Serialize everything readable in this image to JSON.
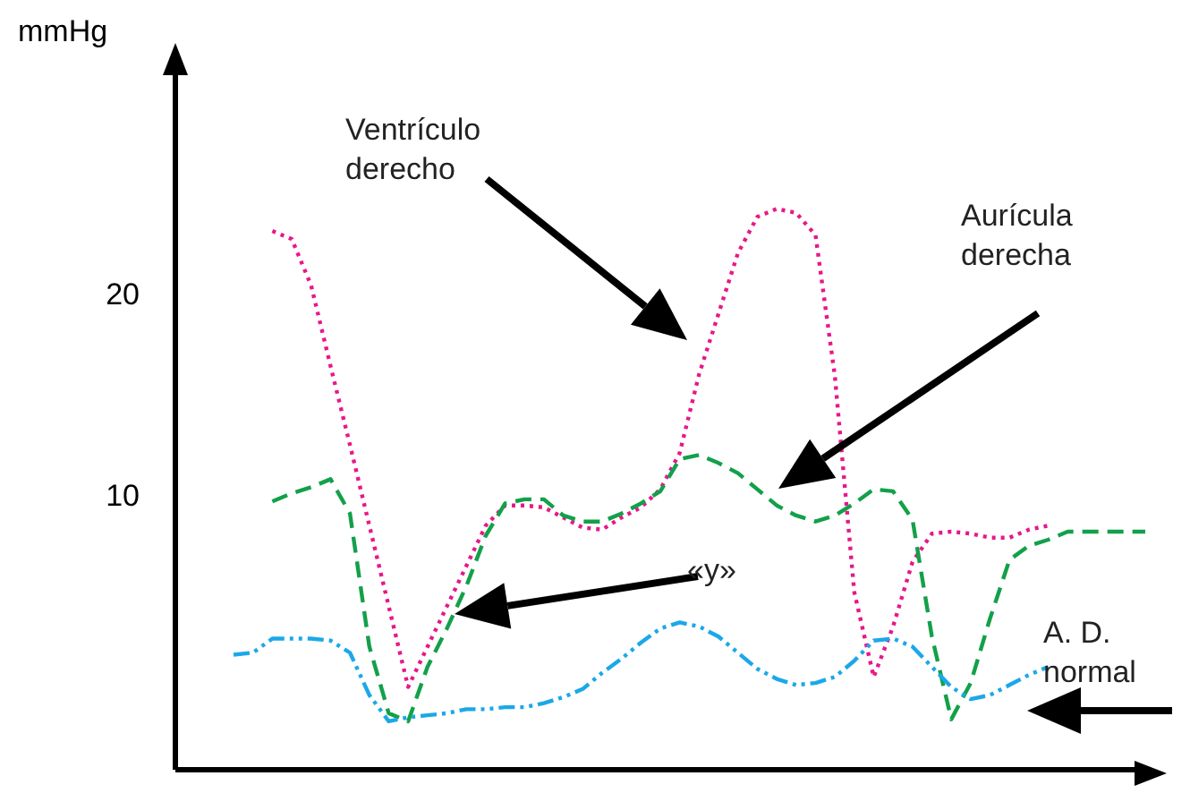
{
  "chart_data": {
    "type": "line",
    "ylabel": "mmHg",
    "categories": [
      null,
      null,
      null,
      null,
      null,
      null,
      null,
      null,
      null,
      null,
      null,
      null,
      null,
      null,
      null,
      null,
      null,
      null,
      null,
      null,
      null,
      null,
      null,
      null,
      null,
      null,
      null,
      null,
      null,
      null,
      null,
      null,
      null,
      null,
      null,
      null,
      null,
      null,
      null,
      null,
      null,
      null,
      null,
      null,
      null,
      null,
      null,
      null,
      null,
      null,
      null
    ],
    "ylim": [
      -3.6,
      31
    ],
    "yticks": [
      10,
      20
    ],
    "tick_labels": "y",
    "grid": false,
    "legend": false,
    "marker": "none",
    "annotations": [
      "Ventrículo derecho",
      "Aurícula derecha",
      "«y»",
      "A. D. normal"
    ],
    "series": [
      {
        "color": "#e8178a",
        "line_style": "dotted",
        "values": [
          null,
          null,
          null,
          null,
          null,
          23.1,
          22.7,
          20.4,
          16.4,
          12.5,
          8.5,
          4.5,
          0.5,
          2.5,
          4.5,
          6.5,
          8.5,
          9.5,
          9.5,
          9.4,
          8.9,
          8.4,
          8.3,
          8.9,
          9.4,
          10.3,
          12.1,
          16.0,
          19.0,
          22.0,
          23.8,
          24.2,
          24.0,
          22.9,
          15.9,
          5.2,
          1.0,
          3.5,
          6.7,
          8.1,
          8.2,
          8.1,
          7.9,
          7.9,
          8.3,
          8.5,
          null,
          null,
          null,
          null,
          null
        ]
      },
      {
        "color": "#13a04a",
        "line_style": "dashed",
        "values": [
          null,
          null,
          null,
          null,
          null,
          9.7,
          10.1,
          10.4,
          10.8,
          9.1,
          2.5,
          -0.8,
          -1.2,
          1.5,
          3.4,
          5.5,
          8.0,
          9.6,
          9.8,
          9.8,
          9.0,
          8.7,
          8.7,
          9.1,
          9.6,
          10.2,
          11.8,
          12.0,
          11.6,
          11.1,
          10.3,
          9.5,
          9.0,
          8.7,
          9.0,
          9.6,
          10.3,
          10.2,
          8.8,
          3.0,
          -1.1,
          0.7,
          3.9,
          6.8,
          7.5,
          7.8,
          8.2,
          8.2,
          8.2,
          8.2,
          8.2
        ]
      },
      {
        "color": "#1ba8e8",
        "line_style": "dashdot",
        "values": [
          null,
          null,
          null,
          2.1,
          2.2,
          2.9,
          2.9,
          2.9,
          2.8,
          2.2,
          0.1,
          -1.2,
          -1.0,
          -0.9,
          -0.8,
          -0.6,
          -0.6,
          -0.5,
          -0.5,
          -0.3,
          0.0,
          0.4,
          1.2,
          1.9,
          2.7,
          3.4,
          3.7,
          3.5,
          3.0,
          2.2,
          1.4,
          0.9,
          0.6,
          0.7,
          1.0,
          1.8,
          2.8,
          2.9,
          2.5,
          1.5,
          0.5,
          -0.1,
          0.1,
          0.6,
          1.1,
          1.5,
          null,
          null,
          null,
          null,
          null
        ]
      }
    ]
  }
}
